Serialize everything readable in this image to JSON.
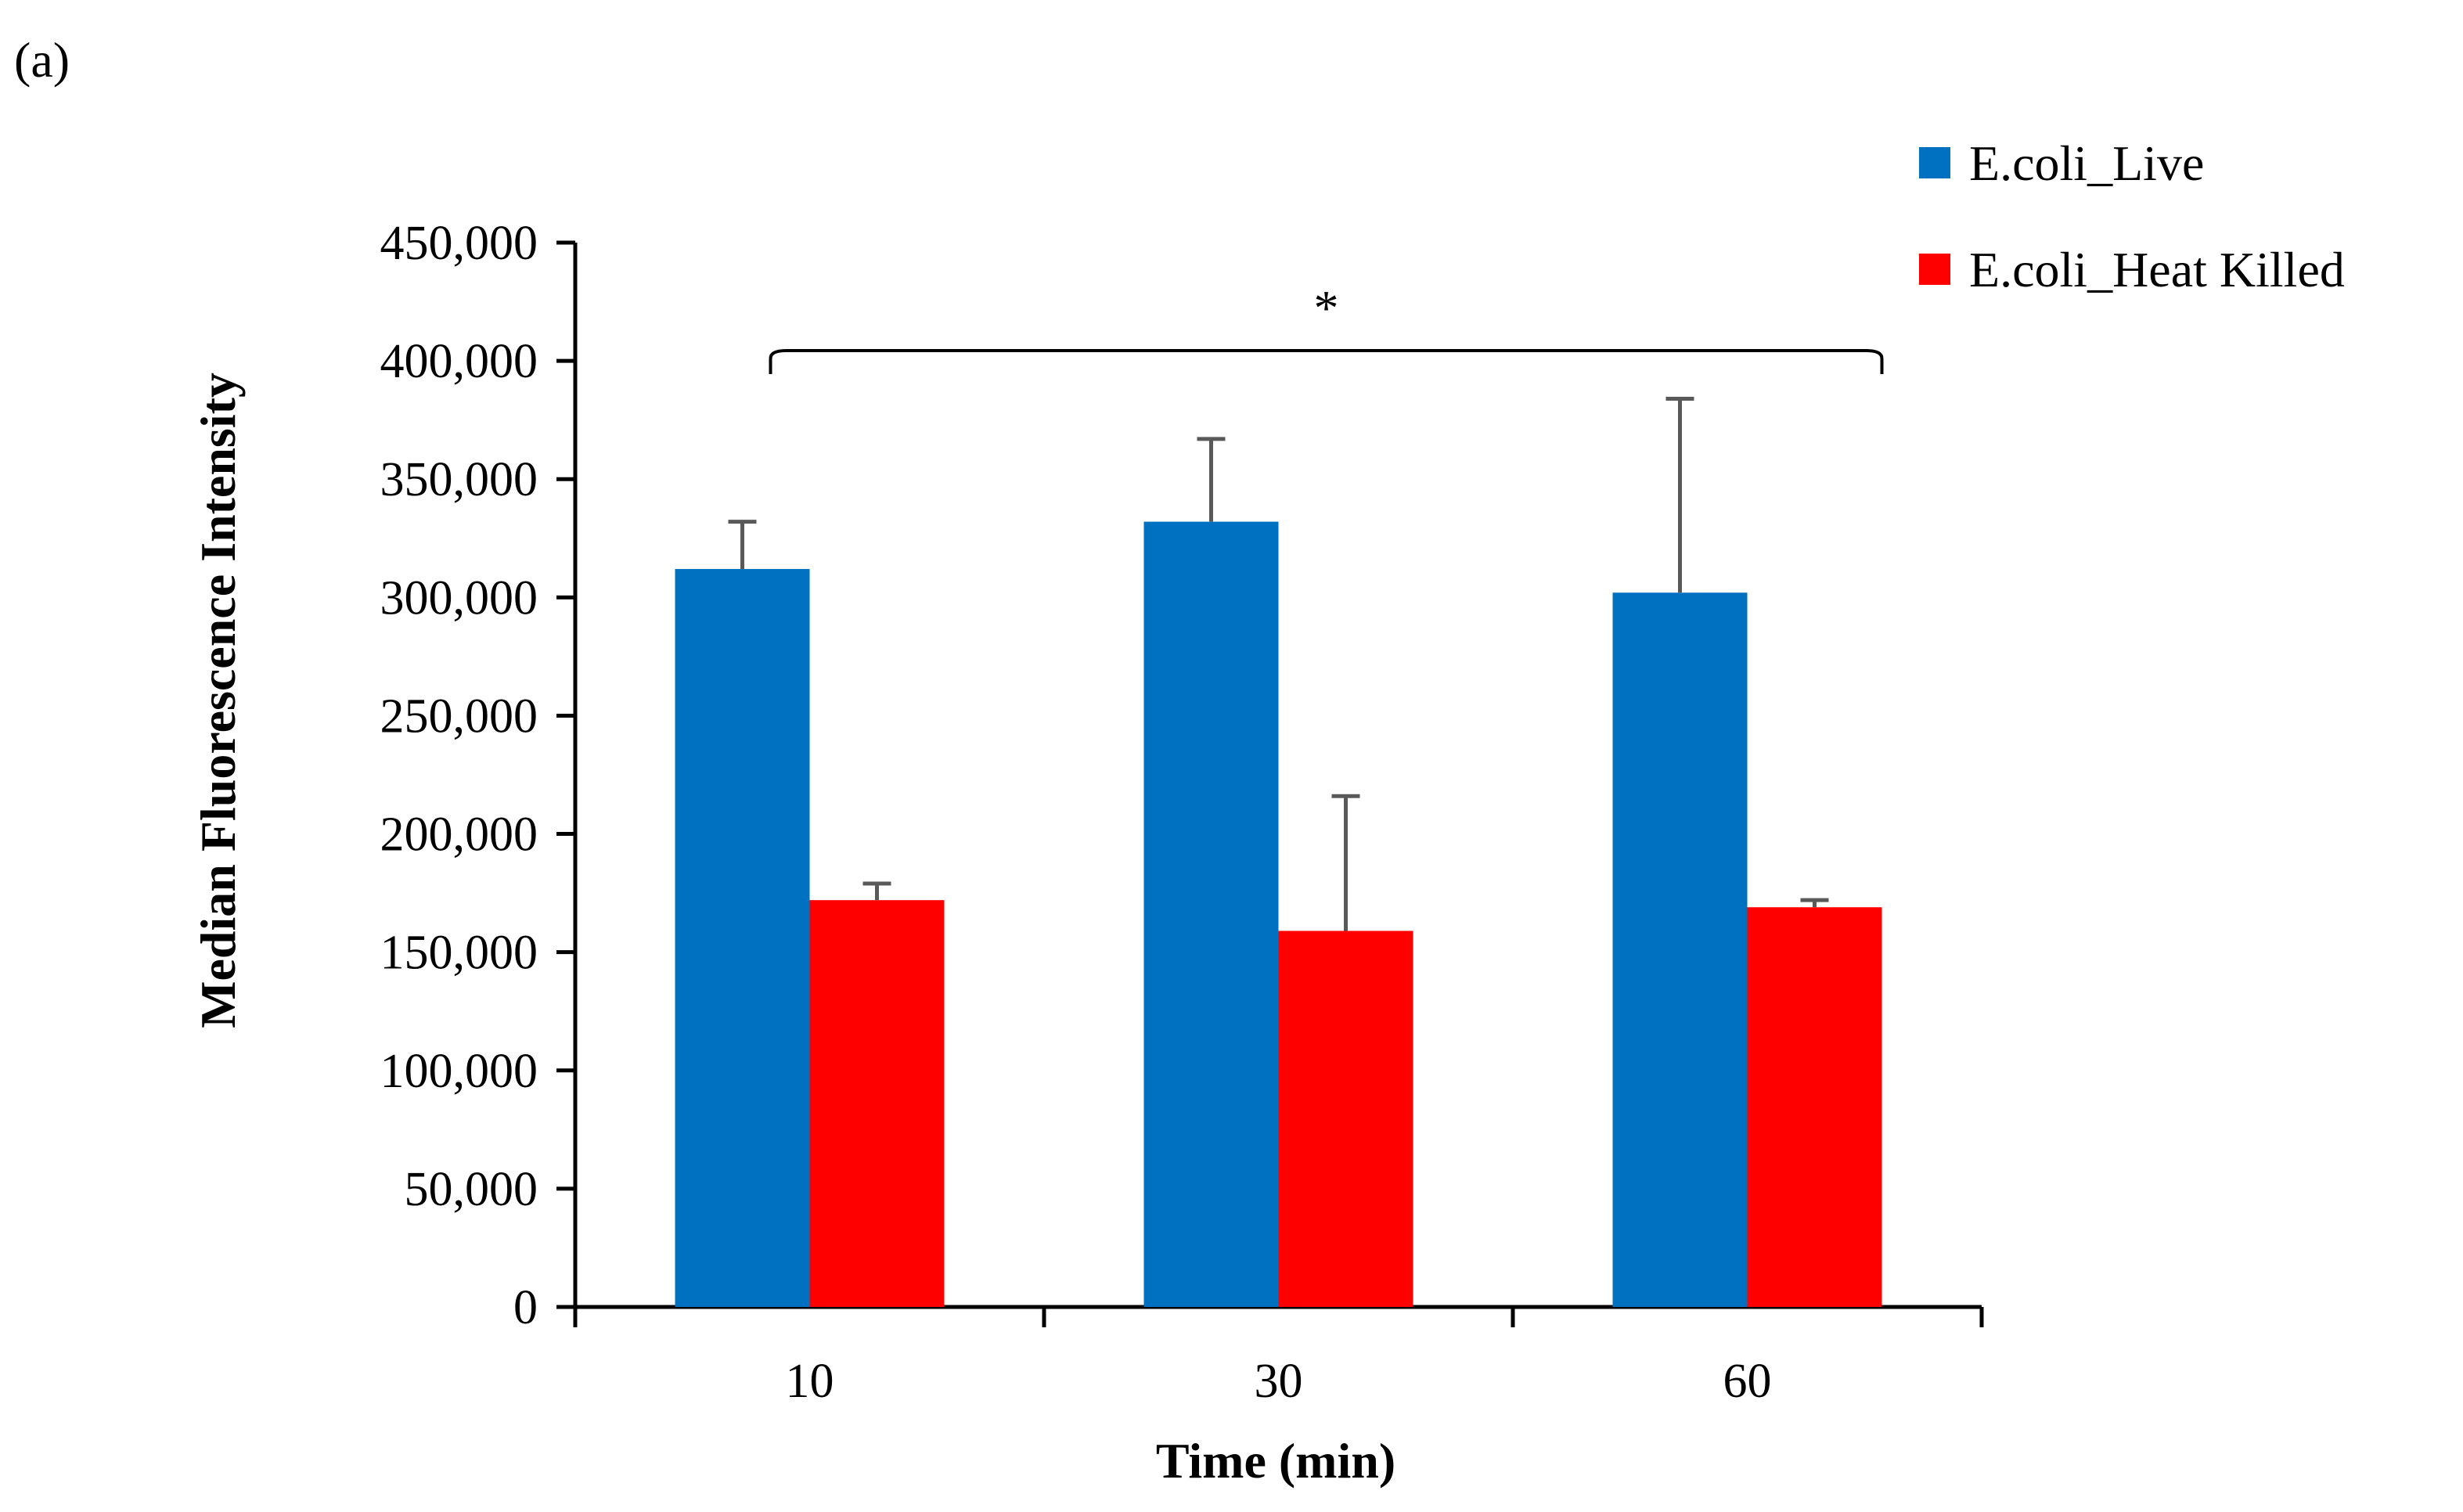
{
  "panel_label": "(a)",
  "chart_data": {
    "type": "bar",
    "title": "",
    "xlabel": "Time (min)",
    "ylabel": "Median Fluorescence Intensity",
    "categories": [
      "10",
      "30",
      "60"
    ],
    "ylim": [
      0,
      450000
    ],
    "yticks": [
      0,
      50000,
      100000,
      150000,
      200000,
      250000,
      300000,
      350000,
      400000,
      450000
    ],
    "ytick_labels": [
      "0",
      "50,000",
      "100,000",
      "150,000",
      "200,000",
      "250,000",
      "300,000",
      "350,000",
      "400,000",
      "450,000"
    ],
    "grid": false,
    "legend_position": "top-right",
    "series": [
      {
        "name": "E.coli_Live",
        "color": "#0070C0",
        "values": [
          312000,
          332000,
          302000
        ],
        "errors": [
          20000,
          35000,
          82000
        ]
      },
      {
        "name": "E.coli_Heat Killed",
        "color": "#FF0000",
        "values": [
          172000,
          159000,
          169000
        ],
        "errors": [
          7000,
          57000,
          3000
        ]
      }
    ],
    "annotation": {
      "text": "*",
      "from_category": "10",
      "to_category": "60"
    }
  }
}
